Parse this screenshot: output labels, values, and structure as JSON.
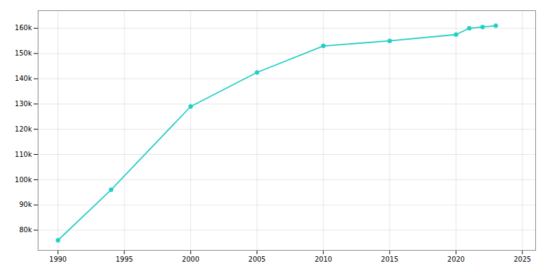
{
  "chart_data": {
    "type": "line",
    "x": [
      1990,
      1994,
      2000,
      2005,
      2010,
      2015,
      2020,
      2021,
      2022,
      2023
    ],
    "values": [
      76000,
      96000,
      129000,
      142500,
      153000,
      155000,
      157500,
      160000,
      160500,
      161000
    ],
    "color": "#22CEC8",
    "marker": "circle",
    "xlim": [
      1988.5,
      2026
    ],
    "ylim": [
      72000,
      167000
    ],
    "xticks": [
      1990,
      1995,
      2000,
      2005,
      2010,
      2015,
      2020,
      2025
    ],
    "yticks": [
      {
        "value": 80000,
        "label": "80k"
      },
      {
        "value": 90000,
        "label": "90k"
      },
      {
        "value": 100000,
        "label": "100k"
      },
      {
        "value": 110000,
        "label": "110k"
      },
      {
        "value": 120000,
        "label": "120k"
      },
      {
        "value": 130000,
        "label": "130k"
      },
      {
        "value": 140000,
        "label": "140k"
      },
      {
        "value": 150000,
        "label": "150k"
      },
      {
        "value": 160000,
        "label": "160k"
      }
    ],
    "grid": true
  }
}
